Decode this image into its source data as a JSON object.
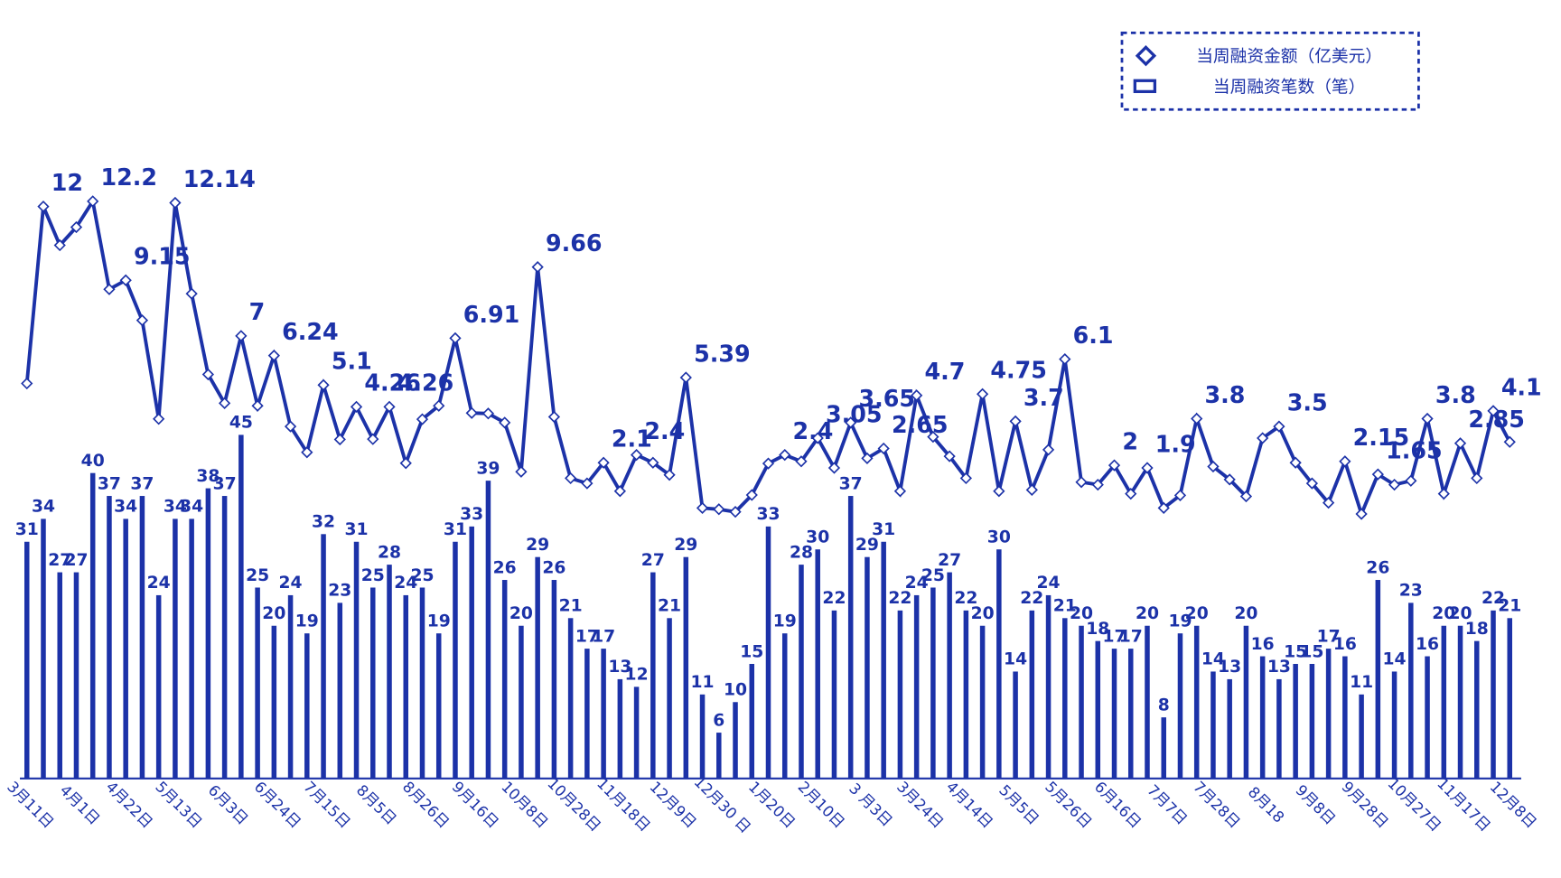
{
  "chart_data": {
    "type": "bar-line",
    "categories": [
      "3月11日",
      null,
      null,
      "4月1日",
      null,
      null,
      "4月22日",
      null,
      null,
      "5月13日",
      null,
      null,
      "6月3日",
      null,
      null,
      "6月24日",
      null,
      null,
      "7月15日",
      null,
      null,
      "8月5日",
      null,
      null,
      "8月26日",
      null,
      null,
      "9月16日",
      null,
      null,
      "10月8日",
      null,
      null,
      "10月28日",
      null,
      null,
      "11月18日",
      null,
      null,
      "12月9日",
      null,
      null,
      "12月30 日",
      null,
      null,
      "1月20日",
      null,
      null,
      "2月10日",
      null,
      null,
      "3 月3日",
      null,
      null,
      "3月24日",
      null,
      null,
      "4月14日",
      null,
      null,
      "5月5日",
      null,
      null,
      "5月26日",
      null,
      null,
      "6月16日",
      null,
      null,
      "7月7日",
      null,
      null,
      "7月28日",
      null,
      null,
      "8月18",
      null,
      null,
      "9月8日",
      null,
      null,
      "9月28日",
      null,
      null,
      "10月27日",
      null,
      null,
      "11月17日",
      null,
      null,
      "12月8日"
    ],
    "series": [
      {
        "name": "当周融资金额（亿美元）",
        "type": "line",
        "axis": "y2",
        "color": "#1c32a8",
        "values": [
          5.16,
          12,
          10.5,
          11.2,
          12.2,
          8.8,
          9.15,
          7.6,
          3.79,
          12.14,
          8.63,
          5.51,
          4.4,
          7,
          4.3,
          6.24,
          3.5,
          2.5,
          5.1,
          3.0,
          4.26,
          3.01,
          4.26,
          2.08,
          3.78,
          4.3,
          6.91,
          4.02,
          4.0,
          3.65,
          1.75,
          9.66,
          3.87,
          1.5,
          1.3,
          2.1,
          1.0,
          2.4,
          2.1,
          1.63,
          5.39,
          0.35,
          0.3,
          0.2,
          0.85,
          2.07,
          2.4,
          2.15,
          3.05,
          1.9,
          3.65,
          2.27,
          2.65,
          1.0,
          4.7,
          3.1,
          2.35,
          1.5,
          4.75,
          1.0,
          3.7,
          1.05,
          2.6,
          6.1,
          1.35,
          1.25,
          2.0,
          0.9,
          1.9,
          0.35,
          0.84,
          3.8,
          1.95,
          1.45,
          0.8,
          3.05,
          3.5,
          2.1,
          1.3,
          0.55,
          2.15,
          0.12,
          1.65,
          1.25,
          1.4,
          3.8,
          0.9,
          2.85,
          1.5,
          4.1,
          2.9
        ]
      },
      {
        "name": "当周融资笔数（笔）",
        "type": "bar",
        "color": "#1c32a8",
        "values": [
          31,
          34,
          27,
          27,
          40,
          37,
          34,
          37,
          24,
          34,
          34,
          38,
          37,
          45,
          25,
          20,
          24,
          19,
          32,
          23,
          31,
          25,
          28,
          24,
          25,
          19,
          31,
          33,
          39,
          26,
          20,
          29,
          26,
          21,
          17,
          17,
          13,
          12,
          27,
          21,
          29,
          11,
          6,
          10,
          15,
          33,
          19,
          28,
          30,
          22,
          37,
          29,
          31,
          22,
          24,
          25,
          27,
          22,
          20,
          30,
          14,
          22,
          24,
          21,
          20,
          18,
          17,
          17,
          20,
          8,
          19,
          20,
          14,
          13,
          20,
          16,
          13,
          15,
          15,
          17,
          16,
          11,
          26,
          14,
          23,
          16,
          20,
          20,
          18,
          22,
          21
        ]
      }
    ],
    "ylim": [
      0,
      100
    ],
    "y2lim": [
      -10.1,
      19.4
    ],
    "legend": "top-right"
  }
}
